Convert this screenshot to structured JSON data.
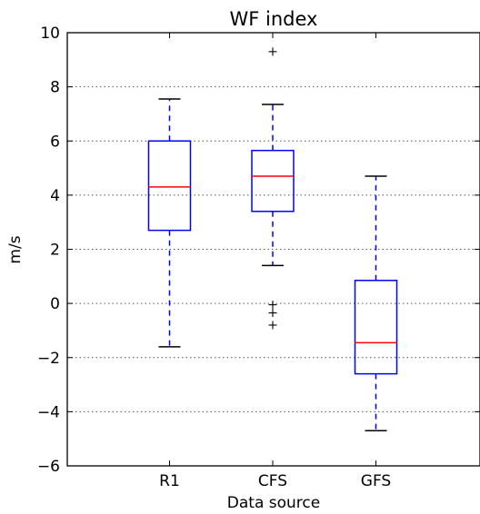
{
  "chart_data": {
    "type": "box",
    "title": "WF index",
    "xlabel": "Data source",
    "ylabel": "m/s",
    "ylim": [
      -6,
      10
    ],
    "yticks": [
      10,
      8,
      6,
      4,
      2,
      0,
      -2,
      -4,
      -6
    ],
    "ytick_labels": [
      "10",
      "8",
      "6",
      "4",
      "2",
      "0",
      "−2",
      "−4",
      "−6"
    ],
    "grid": "y-dotted",
    "categories": [
      "R1",
      "CFS",
      "GFS"
    ],
    "boxes": [
      {
        "label": "R1",
        "whisker_low": -1.6,
        "q1": 2.7,
        "median": 4.3,
        "q3": 6.0,
        "whisker_high": 7.55,
        "outliers": []
      },
      {
        "label": "CFS",
        "whisker_low": 1.4,
        "q1": 3.4,
        "median": 4.7,
        "q3": 5.65,
        "whisker_high": 7.35,
        "outliers": [
          9.3,
          -0.05,
          -0.35,
          -0.8
        ]
      },
      {
        "label": "GFS",
        "whisker_low": -4.7,
        "q1": -2.6,
        "median": -1.45,
        "q3": 0.85,
        "whisker_high": 4.7,
        "outliers": []
      }
    ],
    "colors": {
      "box": "#0000ff",
      "median": "#ff0000",
      "whisker": "#0000ff",
      "cap": "#000000",
      "outlier": "#000000",
      "grid": "#555555"
    }
  }
}
